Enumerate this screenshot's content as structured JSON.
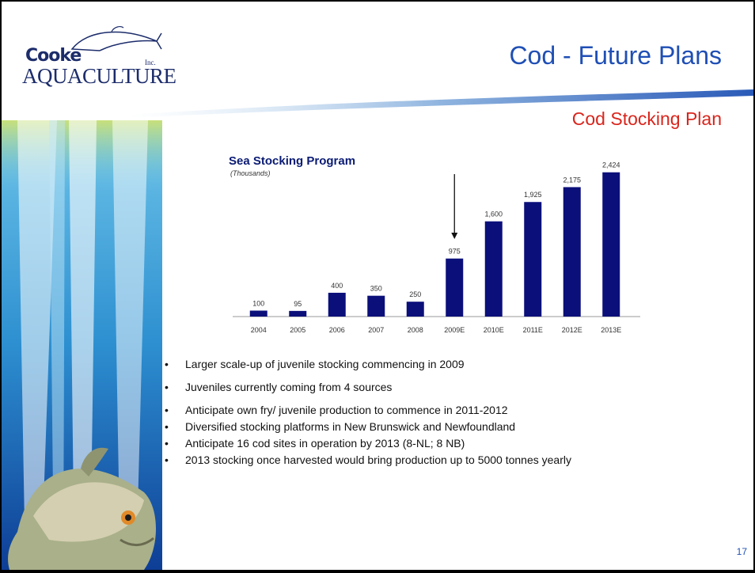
{
  "slide": {
    "logo_line1": "Cooke",
    "logo_line2": "AQUACULTURE",
    "logo_inc": "Inc.",
    "title": "Cod - Future Plans",
    "subtitle": "Cod Stocking Plan",
    "page_number": "17",
    "colors": {
      "title": "#1f4fb5",
      "subtitle": "#d9251c",
      "bar": "#0b0f7a",
      "chart_title": "#0a1b73"
    }
  },
  "chart_data": {
    "type": "bar",
    "title": "Sea Stocking Program",
    "unit": "(Thousands)",
    "categories": [
      "2004",
      "2005",
      "2006",
      "2007",
      "2008",
      "2009E",
      "2010E",
      "2011E",
      "2012E",
      "2013E"
    ],
    "values": [
      100,
      95,
      400,
      350,
      250,
      975,
      1600,
      1925,
      2175,
      2424
    ],
    "data_labels": [
      "100",
      "95",
      "400",
      "350",
      "250",
      "975",
      "1,600",
      "1,925",
      "2,175",
      "2,424"
    ],
    "ylim": [
      0,
      2500
    ],
    "grid": false,
    "annotation": "arrow pointing down to 2009E"
  },
  "bullets": [
    "Larger scale-up of juvenile stocking commencing in 2009",
    "Juveniles currently coming from 4 sources",
    "Anticipate own fry/ juvenile production to commence in 2011-2012",
    "Diversified stocking platforms in New Brunswick and Newfoundland",
    "Anticipate 16 cod sites in operation by 2013 (8-NL; 8 NB)",
    "2013 stocking once harvested would bring production up to 5000 tonnes yearly"
  ]
}
